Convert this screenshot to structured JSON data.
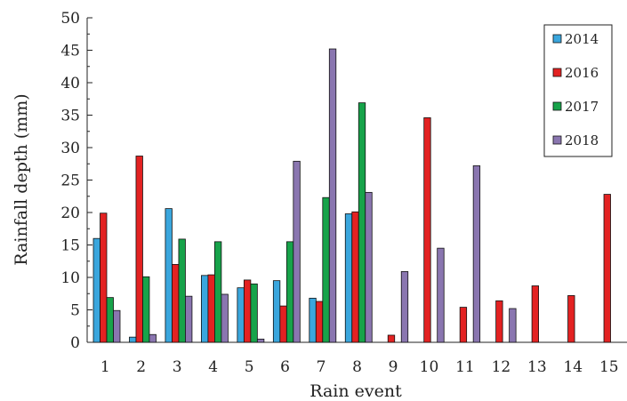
{
  "chart_data": {
    "type": "bar",
    "xlabel": "Rain event",
    "ylabel": "Rainfall depth (mm)",
    "ylim": [
      0,
      50
    ],
    "yticks": [
      0,
      5,
      10,
      15,
      20,
      25,
      30,
      35,
      40,
      45,
      50
    ],
    "categories": [
      "1",
      "2",
      "3",
      "4",
      "5",
      "6",
      "7",
      "8",
      "9",
      "10",
      "11",
      "12",
      "13",
      "14",
      "15"
    ],
    "legend_position": "top-right",
    "grid": false,
    "series": [
      {
        "name": "2014",
        "color": "#3aa6dd",
        "values": [
          16.0,
          0.8,
          20.6,
          10.3,
          8.4,
          9.5,
          6.8,
          19.8,
          0,
          0,
          0,
          0,
          0,
          0,
          0
        ]
      },
      {
        "name": "2016",
        "color": "#e32222",
        "values": [
          19.9,
          28.7,
          12.0,
          10.4,
          9.6,
          5.6,
          6.3,
          20.1,
          1.1,
          34.6,
          5.4,
          6.4,
          8.7,
          7.2,
          22.8
        ]
      },
      {
        "name": "2017",
        "color": "#17a34a",
        "values": [
          6.9,
          10.1,
          15.9,
          15.5,
          9.0,
          15.5,
          22.3,
          36.9,
          0,
          0,
          0,
          0,
          0,
          0,
          0
        ]
      },
      {
        "name": "2018",
        "color": "#8a76b0",
        "values": [
          4.9,
          1.2,
          7.1,
          7.4,
          0.5,
          27.9,
          45.2,
          23.1,
          10.9,
          14.5,
          27.2,
          5.2,
          0,
          0,
          0
        ]
      }
    ]
  }
}
